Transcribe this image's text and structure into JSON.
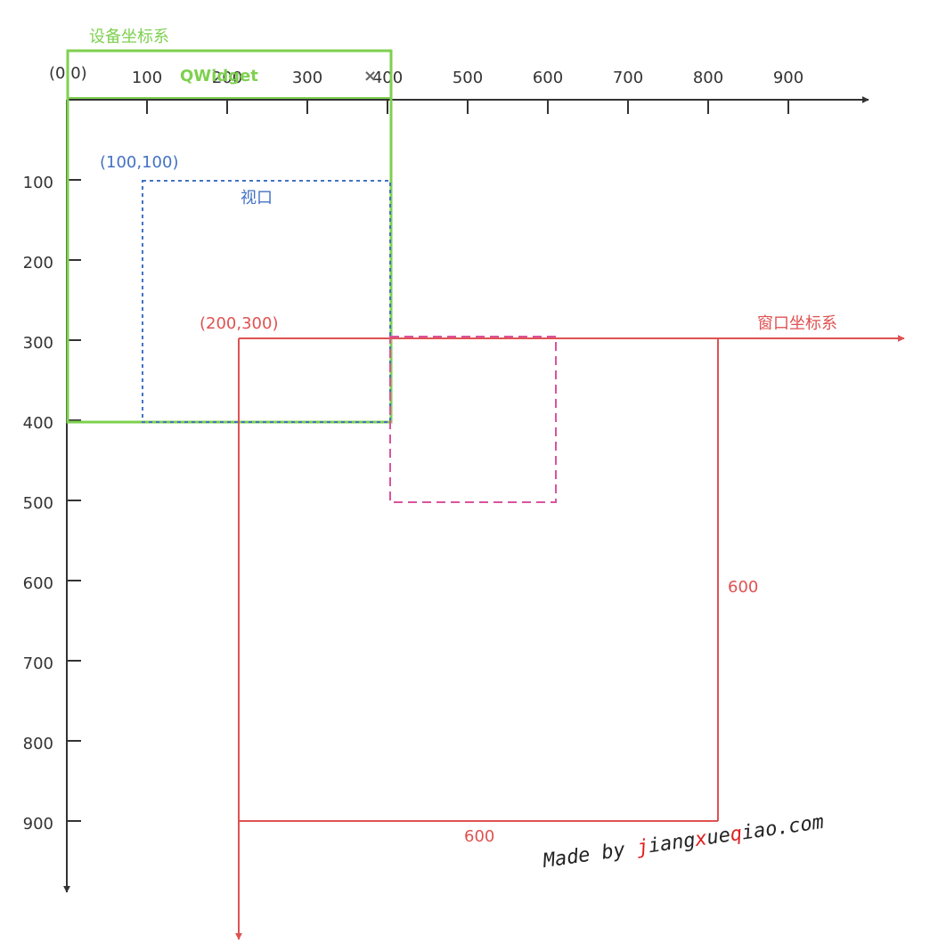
{
  "device_system": {
    "title": "设备坐标系",
    "window_title": "QWidget",
    "close": "×"
  },
  "origin": "(0,0)",
  "x_axis_labels": [
    "100",
    "200",
    "300",
    "400",
    "500",
    "600",
    "700",
    "800",
    "900"
  ],
  "y_axis_labels": [
    "100",
    "200",
    "300",
    "400",
    "500",
    "600",
    "700",
    "800",
    "900"
  ],
  "viewport": {
    "corner": "(100,100)",
    "label": "视口"
  },
  "window_system": {
    "corner": "(200,300)",
    "label": "窗口坐标系",
    "width": "600",
    "height": "600"
  },
  "watermark": [
    "Made by ",
    "j",
    "iang",
    "x",
    "ue",
    "q",
    "iao.com"
  ]
}
